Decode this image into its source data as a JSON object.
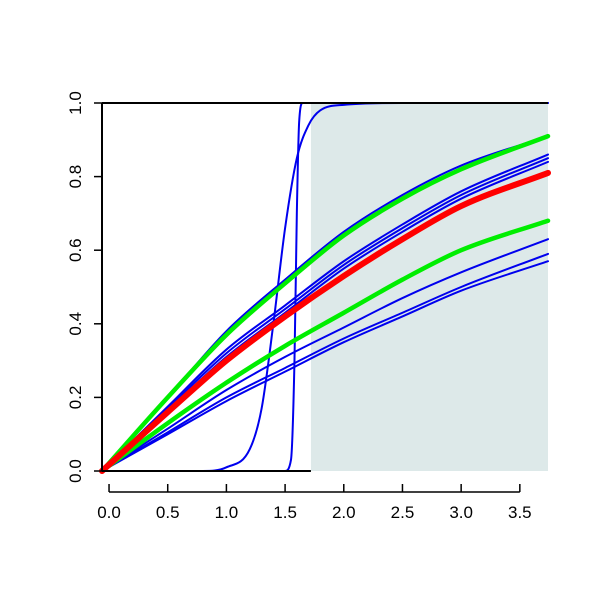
{
  "chart_data": {
    "type": "line",
    "title": "",
    "xlabel": "",
    "ylabel": "",
    "xlim": [
      -0.06,
      3.74
    ],
    "ylim": [
      0.0,
      1.0
    ],
    "x_ticks": [
      0.0,
      0.5,
      1.0,
      1.5,
      2.0,
      2.5,
      3.0,
      3.5
    ],
    "x_tick_labels": [
      "0.0",
      "0.5",
      "1.0",
      "1.5",
      "2.0",
      "2.5",
      "3.0",
      "3.5"
    ],
    "y_ticks": [
      0.0,
      0.2,
      0.4,
      0.6,
      0.8,
      1.0
    ],
    "y_tick_labels": [
      "0.0",
      "0.2",
      "0.4",
      "0.6",
      "0.8",
      "1.0"
    ],
    "grid": false,
    "legend": "none",
    "shaded_region": {
      "x_from": 1.72,
      "x_to": 3.74,
      "y_from": 0.0,
      "y_to": 1.0,
      "color": "#dde9e9"
    },
    "colors": {
      "blue": "#0000ee",
      "red": "#ff0000",
      "green": "#00ee00",
      "axis": "#000000"
    },
    "series": [
      {
        "color": "#0000ee",
        "x": [
          -0.06,
          0.8,
          1.0,
          1.2,
          1.3,
          1.4,
          1.5,
          1.6,
          1.7,
          1.8,
          2.0,
          2.5,
          3.74
        ],
        "y": [
          0.0,
          0.0,
          0.01,
          0.06,
          0.17,
          0.4,
          0.66,
          0.85,
          0.94,
          0.98,
          0.995,
          1.0,
          1.0
        ]
      },
      {
        "color": "#0000ee",
        "x": [
          -0.06,
          1.5,
          1.55,
          1.58,
          1.6,
          1.62,
          1.65,
          3.74
        ],
        "y": [
          0.0,
          0.0,
          0.03,
          0.3,
          0.7,
          0.95,
          1.0,
          1.0
        ]
      },
      {
        "color": "#0000ee",
        "x": [
          -0.06,
          0.5,
          1.0,
          1.5,
          2.0,
          2.5,
          3.0,
          3.74
        ],
        "y": [
          0.0,
          0.2,
          0.38,
          0.52,
          0.65,
          0.75,
          0.83,
          0.91
        ]
      },
      {
        "color": "#0000ee",
        "x": [
          -0.06,
          0.5,
          1.0,
          1.5,
          2.0,
          2.5,
          3.0,
          3.74
        ],
        "y": [
          0.0,
          0.175,
          0.33,
          0.45,
          0.57,
          0.67,
          0.76,
          0.86
        ]
      },
      {
        "color": "#0000ee",
        "x": [
          -0.06,
          0.5,
          1.0,
          1.5,
          2.0,
          2.5,
          3.0,
          3.74
        ],
        "y": [
          0.0,
          0.17,
          0.32,
          0.44,
          0.56,
          0.66,
          0.75,
          0.85
        ]
      },
      {
        "color": "#0000ee",
        "x": [
          -0.06,
          0.5,
          1.0,
          1.5,
          2.0,
          2.5,
          3.0,
          3.74
        ],
        "y": [
          0.0,
          0.165,
          0.31,
          0.43,
          0.55,
          0.65,
          0.74,
          0.84
        ]
      },
      {
        "color": "#0000ee",
        "x": [
          -0.06,
          0.5,
          1.0,
          1.5,
          2.0,
          2.5,
          3.0,
          3.74
        ],
        "y": [
          0.0,
          0.115,
          0.22,
          0.31,
          0.39,
          0.47,
          0.54,
          0.63
        ]
      },
      {
        "color": "#0000ee",
        "x": [
          -0.06,
          0.5,
          1.0,
          1.5,
          2.0,
          2.5,
          3.0,
          3.74
        ],
        "y": [
          0.0,
          0.105,
          0.2,
          0.28,
          0.36,
          0.43,
          0.5,
          0.59
        ]
      },
      {
        "color": "#0000ee",
        "x": [
          -0.06,
          0.5,
          1.0,
          1.5,
          2.0,
          2.5,
          3.0,
          3.74
        ],
        "y": [
          0.0,
          0.1,
          0.19,
          0.27,
          0.35,
          0.42,
          0.49,
          0.57
        ]
      },
      {
        "color": "#00ee00",
        "x": [
          -0.06,
          0.5,
          1.0,
          1.5,
          2.0,
          2.5,
          3.0,
          3.74
        ],
        "y": [
          0.0,
          0.2,
          0.37,
          0.51,
          0.64,
          0.74,
          0.82,
          0.91
        ]
      },
      {
        "color": "#00ee00",
        "x": [
          -0.06,
          0.5,
          1.0,
          1.5,
          2.0,
          2.5,
          3.0,
          3.74
        ],
        "y": [
          0.0,
          0.13,
          0.24,
          0.34,
          0.43,
          0.52,
          0.6,
          0.68
        ]
      },
      {
        "color": "#ff0000",
        "x": [
          -0.06,
          0.5,
          1.0,
          1.5,
          2.0,
          2.5,
          3.0,
          3.74
        ],
        "y": [
          0.0,
          0.16,
          0.3,
          0.42,
          0.53,
          0.63,
          0.72,
          0.81
        ]
      }
    ]
  }
}
